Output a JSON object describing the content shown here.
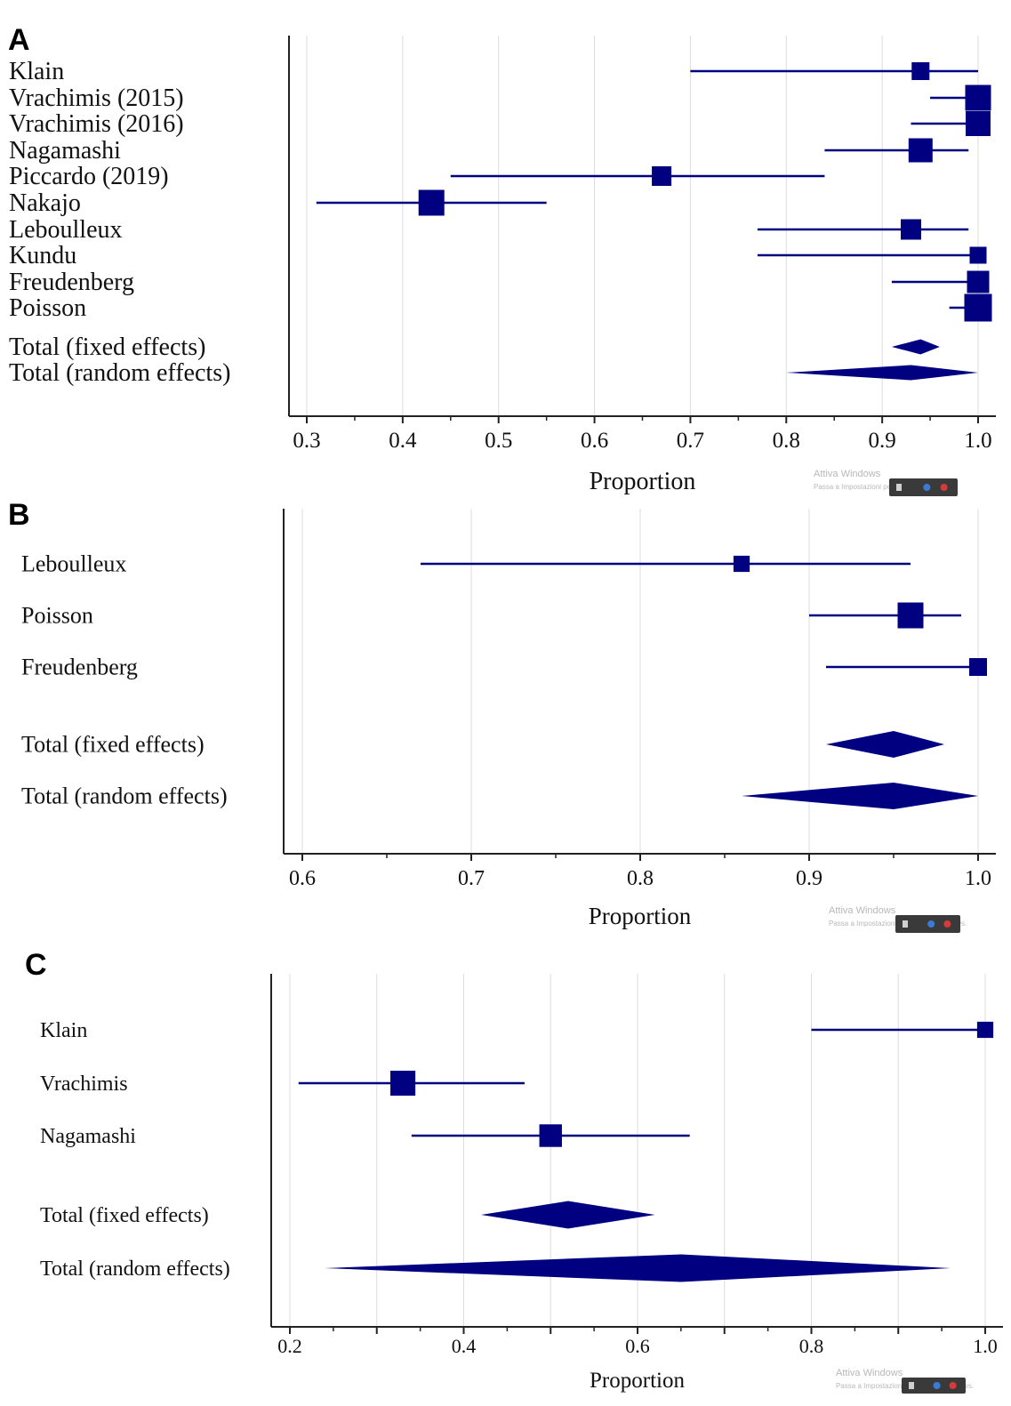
{
  "colors": {
    "mark": "#000080",
    "grid": "#dcdcdc",
    "axis": "#222222"
  },
  "watermark": {
    "line1": "Attiva Windows",
    "line2": "Passa a Impostazioni per attivare Windows."
  },
  "chart_data": [
    {
      "panel": "A",
      "type": "forest",
      "xlabel": "Proportion",
      "xlim": [
        0.28,
        1.02
      ],
      "ticks": [
        0.3,
        0.4,
        0.5,
        0.6,
        0.7,
        0.8,
        0.9,
        1.0
      ],
      "tick_labels": [
        "0.3",
        "0.4",
        "0.5",
        "0.6",
        "0.7",
        "0.8",
        "0.9",
        "1.0"
      ],
      "studies": [
        {
          "name": "Klain",
          "estimate": 0.94,
          "ci": [
            0.7,
            1.0
          ],
          "weight": 0.45
        },
        {
          "name": "Vrachimis (2015)",
          "estimate": 1.0,
          "ci": [
            0.95,
            1.0
          ],
          "weight": 0.9
        },
        {
          "name": "Vrachimis (2016)",
          "estimate": 1.0,
          "ci": [
            0.93,
            1.0
          ],
          "weight": 0.85
        },
        {
          "name": "Nagamashi",
          "estimate": 0.94,
          "ci": [
            0.84,
            0.99
          ],
          "weight": 0.8
        },
        {
          "name": "Piccardo (2019)",
          "estimate": 0.67,
          "ci": [
            0.45,
            0.84
          ],
          "weight": 0.55
        },
        {
          "name": "Nakajo",
          "estimate": 0.43,
          "ci": [
            0.31,
            0.55
          ],
          "weight": 0.9
        },
        {
          "name": "Leboulleux",
          "estimate": 0.93,
          "ci": [
            0.77,
            0.99
          ],
          "weight": 0.6
        },
        {
          "name": "Kundu",
          "estimate": 1.0,
          "ci": [
            0.77,
            1.0
          ],
          "weight": 0.4
        },
        {
          "name": "Freudenberg",
          "estimate": 1.0,
          "ci": [
            0.91,
            1.0
          ],
          "weight": 0.7
        },
        {
          "name": "Poisson",
          "estimate": 1.0,
          "ci": [
            0.97,
            1.0
          ],
          "weight": 1.0
        }
      ],
      "totals": [
        {
          "name": "Total (fixed effects)",
          "estimate": 0.94,
          "ci": [
            0.91,
            0.96
          ]
        },
        {
          "name": "Total (random effects)",
          "estimate": 0.93,
          "ci": [
            0.8,
            1.0
          ]
        }
      ]
    },
    {
      "panel": "B",
      "type": "forest",
      "xlabel": "Proportion",
      "xlim": [
        0.59,
        1.01
      ],
      "ticks": [
        0.6,
        0.7,
        0.8,
        0.9,
        1.0
      ],
      "tick_labels": [
        "0.6",
        "0.7",
        "0.8",
        "0.9",
        "1.0"
      ],
      "studies": [
        {
          "name": "Leboulleux",
          "estimate": 0.86,
          "ci": [
            0.67,
            0.96
          ],
          "weight": 0.4
        },
        {
          "name": "Poisson",
          "estimate": 0.96,
          "ci": [
            0.9,
            0.99
          ],
          "weight": 1.0
        },
        {
          "name": "Freudenberg",
          "estimate": 1.0,
          "ci": [
            0.91,
            1.0
          ],
          "weight": 0.5
        }
      ],
      "totals": [
        {
          "name": "Total (fixed effects)",
          "estimate": 0.95,
          "ci": [
            0.91,
            0.98
          ]
        },
        {
          "name": "Total (random effects)",
          "estimate": 0.95,
          "ci": [
            0.86,
            1.0
          ]
        }
      ]
    },
    {
      "panel": "C",
      "type": "forest",
      "xlabel": "Proportion",
      "xlim": [
        0.18,
        1.01
      ],
      "ticks": [
        0.2,
        0.3,
        0.4,
        0.5,
        0.6,
        0.7,
        0.8,
        0.9,
        1.0
      ],
      "tick_labels": [
        "0.2",
        "",
        "0.4",
        "",
        "0.6",
        "",
        "0.8",
        "",
        "1.0"
      ],
      "studies": [
        {
          "name": "Klain",
          "estimate": 1.0,
          "ci": [
            0.8,
            1.0
          ],
          "weight": 0.4
        },
        {
          "name": "Vrachimis",
          "estimate": 0.33,
          "ci": [
            0.21,
            0.47
          ],
          "weight": 0.95
        },
        {
          "name": "Nagamashi",
          "estimate": 0.5,
          "ci": [
            0.34,
            0.66
          ],
          "weight": 0.8
        }
      ],
      "totals": [
        {
          "name": "Total (fixed effects)",
          "estimate": 0.52,
          "ci": [
            0.42,
            0.62
          ]
        },
        {
          "name": "Total (random effects)",
          "estimate": 0.65,
          "ci": [
            0.24,
            0.96
          ]
        }
      ]
    }
  ]
}
